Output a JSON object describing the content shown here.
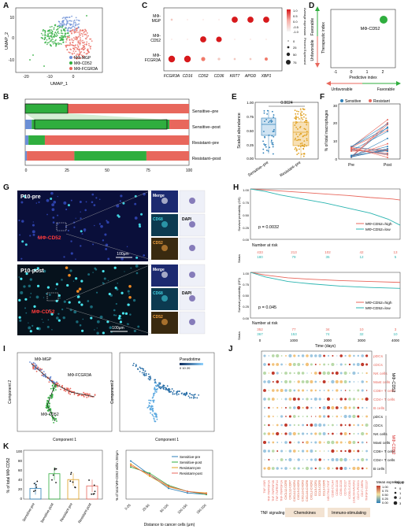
{
  "panel_labels": [
    "A",
    "B",
    "C",
    "D",
    "E",
    "F",
    "G",
    "H",
    "I",
    "J",
    "K"
  ],
  "panelA": {
    "xlabel": "UMAP_1",
    "ylabel": "UMAP_2",
    "xticks": [
      "-20",
      "-10",
      "0"
    ],
    "yticks": [
      "10",
      "0",
      "-10"
    ],
    "legend": [
      "MΦ-MGP",
      "MΦ-CD52",
      "MΦ-FCGR3A"
    ],
    "colors": [
      "#6b8fd6",
      "#2fae3e",
      "#e8675c"
    ]
  },
  "panelB": {
    "xticks": [
      "0",
      "25",
      "50",
      "75",
      "100"
    ],
    "rows": [
      "Sensitive–pre",
      "Sensitive–post",
      "Resistant–pre",
      "Resistant–post"
    ],
    "segments": [
      [
        0,
        0,
        26,
        74
      ],
      [
        4,
        0,
        84,
        12
      ],
      [
        2,
        0,
        10,
        88
      ],
      [
        1,
        29,
        44,
        26
      ]
    ]
  },
  "panelC": {
    "rows": [
      "MΦ-\nMGP",
      "MΦ-\nCD52",
      "MΦ-\nFCGR3A"
    ],
    "row_lines": [
      [
        "MΦ-",
        "MGP"
      ],
      [
        "MΦ-",
        "CD52"
      ],
      [
        "MΦ-",
        "FCGR3A"
      ]
    ],
    "genes": [
      "FCGR3A",
      "CD16",
      "CD52",
      "CD36",
      "KRT7",
      "APOD",
      "XBP1"
    ],
    "color_title": "Average expression",
    "size_title": "Percent Expressed",
    "color_ticks": [
      "1.0",
      "0.5",
      "0.0",
      "-0.5",
      "-1.0"
    ],
    "size_ticks": [
      "0",
      "25",
      "50",
      "75"
    ]
  },
  "panelD": {
    "xlabel": "Predictive index",
    "ylabel": "Therapeutic index",
    "xticks": [
      "-1",
      "0",
      "1",
      "2"
    ],
    "point_label": "MΦ-CD52",
    "top": "Favorable",
    "bottom": "Unfavorable",
    "left": "Unfavorable",
    "right": "Favorable"
  },
  "panelE": {
    "ylabel": "Scaled abundance",
    "pvalue": "0.0024",
    "groups": [
      "Sensitive–pre",
      "Resistant–pre"
    ],
    "yticks": [
      "0.00",
      "0.25",
      "0.50",
      "0.75",
      "1.00"
    ]
  },
  "panelF": {
    "ylabel": "% of total macrophages",
    "legend": [
      "Sensitive",
      "Resistant"
    ],
    "xticks": [
      "Pre",
      "Post"
    ],
    "yticks": [
      "0",
      "5",
      "10",
      "15",
      "20",
      "25",
      "30"
    ]
  },
  "panelG": {
    "top_title": "P10-pre",
    "bottom_title": "P10-post",
    "marker_label": "MΦ-CD52",
    "scale": "100μm",
    "insets": [
      "Merge",
      "CD68",
      "CD52"
    ],
    "dapi": "DAPI"
  },
  "panelH": {
    "top_ylabel": "Survival probability (OS)",
    "bottom_ylabel": "Survival probability (DFI)",
    "top_p": "p = 0.0032",
    "bottom_p": "p = 0.045",
    "legend": [
      "MΦ-CD52=high",
      "MΦ-CD52=low"
    ],
    "risk_title": "Number at risk",
    "strata": "Strata",
    "top_risk_high": [
      "433",
      "213",
      "102",
      "42",
      "13"
    ],
    "top_risk_low": [
      "180",
      "79",
      "35",
      "12",
      "5"
    ],
    "bottom_risk_high": [
      "352",
      "77",
      "34",
      "10",
      "3"
    ],
    "bottom_risk_low": [
      "367",
      "153",
      "74",
      "32",
      "10"
    ],
    "xticks": [
      "0",
      "1000",
      "2000",
      "3000",
      "4000"
    ],
    "yticks": [
      "0.00",
      "0.25",
      "0.50",
      "0.75",
      "1.00"
    ],
    "xlabel": "Time (days)"
  },
  "panelI": {
    "xlabel": "Component 1",
    "ylabel": "Component 2",
    "labels": [
      "MΦ-MGP",
      "MΦ-FCGR3A",
      "MΦ-CD52"
    ],
    "pseudotime_title": "Pseudotime",
    "pseudotime_ticks": "0 10 20"
  },
  "panelJ": {
    "top_rows": [
      "pDCs",
      "cDCs",
      "NK cells",
      "Mast cells",
      "CD8+ T cells",
      "CD4+ T cells",
      "B cells"
    ],
    "bottom_rows": [
      "pDCs",
      "cDCs",
      "NK cells",
      "Mast cells",
      "CD8+ T cells",
      "CD4+ T cells",
      "B cells"
    ],
    "group_top": "MΦ-CD52",
    "group_bottom": "MΦ-CD52",
    "pairs": [
      "TNF-VSIR",
      "TNF-TNFRSF1A",
      "TNF-TNFRSF1B",
      "TNF-TNFRSF14",
      "TNF-TNFRSF1A",
      "CXCL12-CCR5",
      "CXCL12-CCR7",
      "CXCL12-CXCR4",
      "CXCL9-CXCR3",
      "CXCL10-CXCR3",
      "CXCL16-CXCR6",
      "CXCL2-CXCR2",
      "CCL5-CCR1",
      "CCL5-CCR5",
      "CCL3-CCR5",
      "NECTIN2-TIGIT",
      "CD86-CTLA4",
      "CD80-CD28",
      "CD86-CD28",
      "CD70-CD27",
      "ICOSLG-ICOS",
      "LGALS9-HAVCR2",
      "CD274-PDCD1",
      "CD47-SIRPA",
      "TNFSF9-CD137"
    ],
    "sections": [
      "TNF signaling",
      "Chemokines",
      "Immuno-stimulating"
    ],
    "legend_title": "Mean expression",
    "legend_ticks": [
      "1.00",
      "0.75",
      "0.50",
      "0.25",
      "0.00"
    ],
    "p_title": "-log₁₀p",
    "p_ticks": [
      "0",
      "1",
      "2",
      "3"
    ]
  },
  "panelK": {
    "ylabel": "% of total MΦ-CD52",
    "groups": [
      "Sensitive-pre",
      "Sensitive-post",
      "Resistant-pre",
      "Resistant-post"
    ],
    "yticks": [
      "0",
      "20",
      "40",
      "60",
      "80",
      "100"
    ],
    "line_ylabel": "% of total MΦ-CD52 within 200μm",
    "line_xlabel": "Distance to cancer cells (μm)",
    "line_xticks": [
      "0-25",
      "25-50",
      "50-100",
      "100-150",
      "150-200"
    ],
    "legend": [
      "Sensitive-pre",
      "Sensitive-post",
      "Resistant-pre",
      "Resistant-post"
    ]
  }
}
